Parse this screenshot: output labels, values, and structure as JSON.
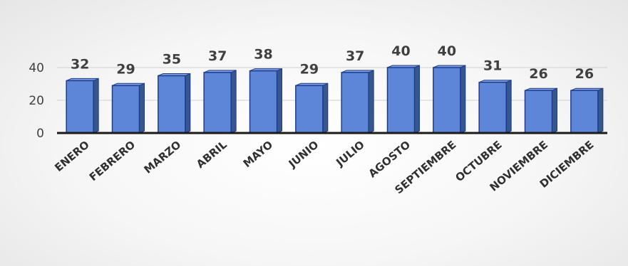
{
  "chart_data": {
    "type": "bar",
    "title": "",
    "xlabel": "",
    "ylabel": "",
    "categories": [
      "ENERO",
      "FEBRERO",
      "MARZO",
      "ABRIL",
      "MAYO",
      "JUNIO",
      "JULIO",
      "AGOSTO",
      "SEPTIEMBRE",
      "OCTUBRE",
      "NOVIEMBRE",
      "DICIEMBRE"
    ],
    "values": [
      32,
      29,
      35,
      37,
      38,
      29,
      37,
      40,
      40,
      31,
      26,
      26
    ],
    "ylim": [
      0,
      40
    ],
    "yticks": [
      "0",
      "20",
      "40"
    ],
    "grid": true,
    "legend": "none",
    "bar_style": "3d",
    "colors": {
      "bar_front": "#5d86d8",
      "bar_side": "#36568f",
      "bar_top": "#7ea0e2",
      "bar_outline": "#1f3c8a",
      "axis": "#1a1a1a",
      "gridline": "#d0d0d0"
    }
  }
}
